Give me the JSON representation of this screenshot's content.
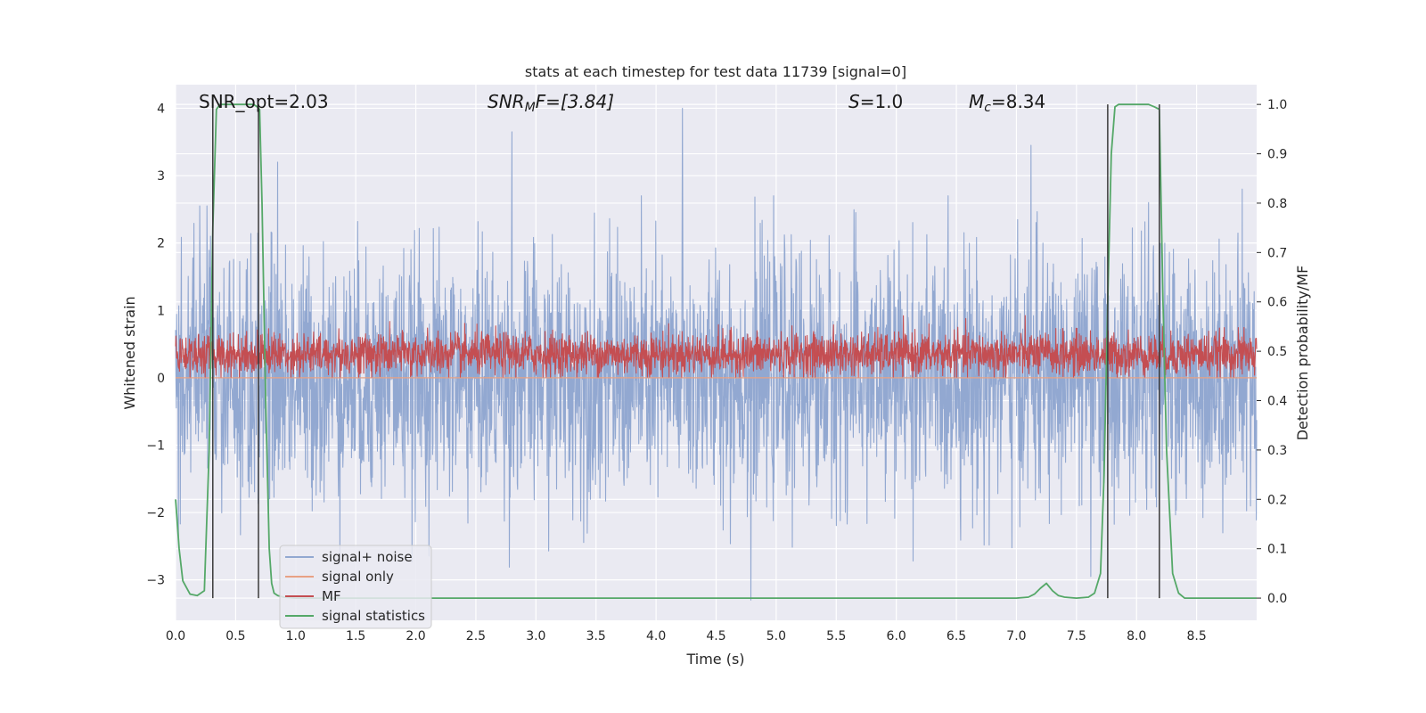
{
  "chart_data": {
    "type": "line",
    "title": "stats at each timestep for test data 11739 [signal=0]",
    "xlabel": "Time (s)",
    "ylabel": "Whitened strain",
    "y2label": "Detection probability/MF",
    "xlim": [
      0.0,
      9.0
    ],
    "ylim": [
      -3.6,
      4.35
    ],
    "y2lim": [
      -0.045,
      1.04
    ],
    "xticks": [
      "0.0",
      "0.5",
      "1.0",
      "1.5",
      "2.0",
      "2.5",
      "3.0",
      "3.5",
      "4.0",
      "4.5",
      "5.0",
      "5.5",
      "6.0",
      "6.5",
      "7.0",
      "7.5",
      "8.0",
      "8.5"
    ],
    "xtick_values": [
      0.0,
      0.5,
      1.0,
      1.5,
      2.0,
      2.5,
      3.0,
      3.5,
      4.0,
      4.5,
      5.0,
      5.5,
      6.0,
      6.5,
      7.0,
      7.5,
      8.0,
      8.5
    ],
    "yticks": [
      "4",
      "3",
      "2",
      "1",
      "0",
      "−1",
      "−2",
      "−3"
    ],
    "ytick_values": [
      4,
      3,
      2,
      1,
      0,
      -1,
      -2,
      -3
    ],
    "y2ticks": [
      "1.0",
      "0.9",
      "0.8",
      "0.7",
      "0.6",
      "0.5",
      "0.4",
      "0.3",
      "0.2",
      "0.1",
      "0.0"
    ],
    "y2tick_values": [
      1.0,
      0.9,
      0.8,
      0.7,
      0.6,
      0.5,
      0.4,
      0.3,
      0.2,
      0.1,
      0.0
    ],
    "grid": true,
    "legend_placement": "lower-left",
    "annotations": {
      "snr_opt": "SNR_opt=2.03",
      "snr_mf_main": "SNR",
      "snr_mf_sub": "M",
      "snr_mf_rest": "F=[3.84]",
      "s_sym": "S",
      "s_rest": "=1.0",
      "mc_sym": "M",
      "mc_sub": "c",
      "mc_rest": "=8.34"
    },
    "series": [
      {
        "name": "signal+ noise",
        "color": "#92a8d1",
        "axis": "left",
        "style": "noise",
        "sigma": 0.9,
        "peaks": [
          [
            0.2,
            2.55
          ],
          [
            0.26,
            2.55
          ],
          [
            0.85,
            3.2
          ],
          [
            2.8,
            3.65
          ],
          [
            4.22,
            4.0
          ],
          [
            4.79,
            -3.3
          ],
          [
            7.12,
            3.45
          ],
          [
            7.62,
            -2.95
          ],
          [
            8.1,
            2.6
          ],
          [
            8.88,
            2.8
          ]
        ]
      },
      {
        "name": "signal only",
        "color": "#e8a184",
        "axis": "left",
        "style": "flat",
        "value": 0.0
      },
      {
        "name": "MF",
        "color": "#c44e52",
        "axis": "left",
        "style": "band",
        "base": 0.0,
        "mean": 0.35,
        "max_level": 0.95
      },
      {
        "name": "signal statistics",
        "color": "#55a868",
        "axis": "right",
        "x": [
          0.0,
          0.03,
          0.06,
          0.12,
          0.18,
          0.24,
          0.28,
          0.31,
          0.34,
          0.37,
          0.4,
          0.45,
          0.5,
          0.55,
          0.6,
          0.65,
          0.68,
          0.7,
          0.72,
          0.75,
          0.78,
          0.8,
          0.82,
          0.85,
          0.9,
          1.0,
          2.0,
          3.0,
          4.0,
          5.0,
          6.0,
          7.0,
          7.1,
          7.15,
          7.2,
          7.25,
          7.3,
          7.35,
          7.4,
          7.5,
          7.6,
          7.65,
          7.7,
          7.73,
          7.76,
          7.79,
          7.82,
          7.85,
          7.9,
          8.0,
          8.1,
          8.15,
          8.19,
          8.22,
          8.25,
          8.3,
          8.35,
          8.4,
          8.5,
          9.0
        ],
        "y": [
          0.2,
          0.1,
          0.035,
          0.008,
          0.005,
          0.015,
          0.3,
          0.75,
          0.99,
          1.0,
          1.0,
          1.0,
          1.0,
          1.0,
          1.0,
          1.0,
          0.995,
          0.99,
          0.8,
          0.4,
          0.1,
          0.03,
          0.01,
          0.005,
          0.002,
          0.0,
          0.0,
          0.0,
          0.0,
          0.0,
          0.0,
          0.0,
          0.002,
          0.008,
          0.02,
          0.03,
          0.015,
          0.005,
          0.002,
          0.0,
          0.002,
          0.01,
          0.05,
          0.25,
          0.6,
          0.9,
          0.995,
          1.0,
          1.0,
          1.0,
          1.0,
          0.995,
          0.99,
          0.6,
          0.3,
          0.05,
          0.01,
          0.0,
          0.0,
          0.0
        ]
      }
    ],
    "markers": {
      "color": "#3a3a3a",
      "x": [
        0.31,
        0.69,
        7.76,
        8.19
      ],
      "y_from": 0.0,
      "y_to": 1.0
    }
  }
}
